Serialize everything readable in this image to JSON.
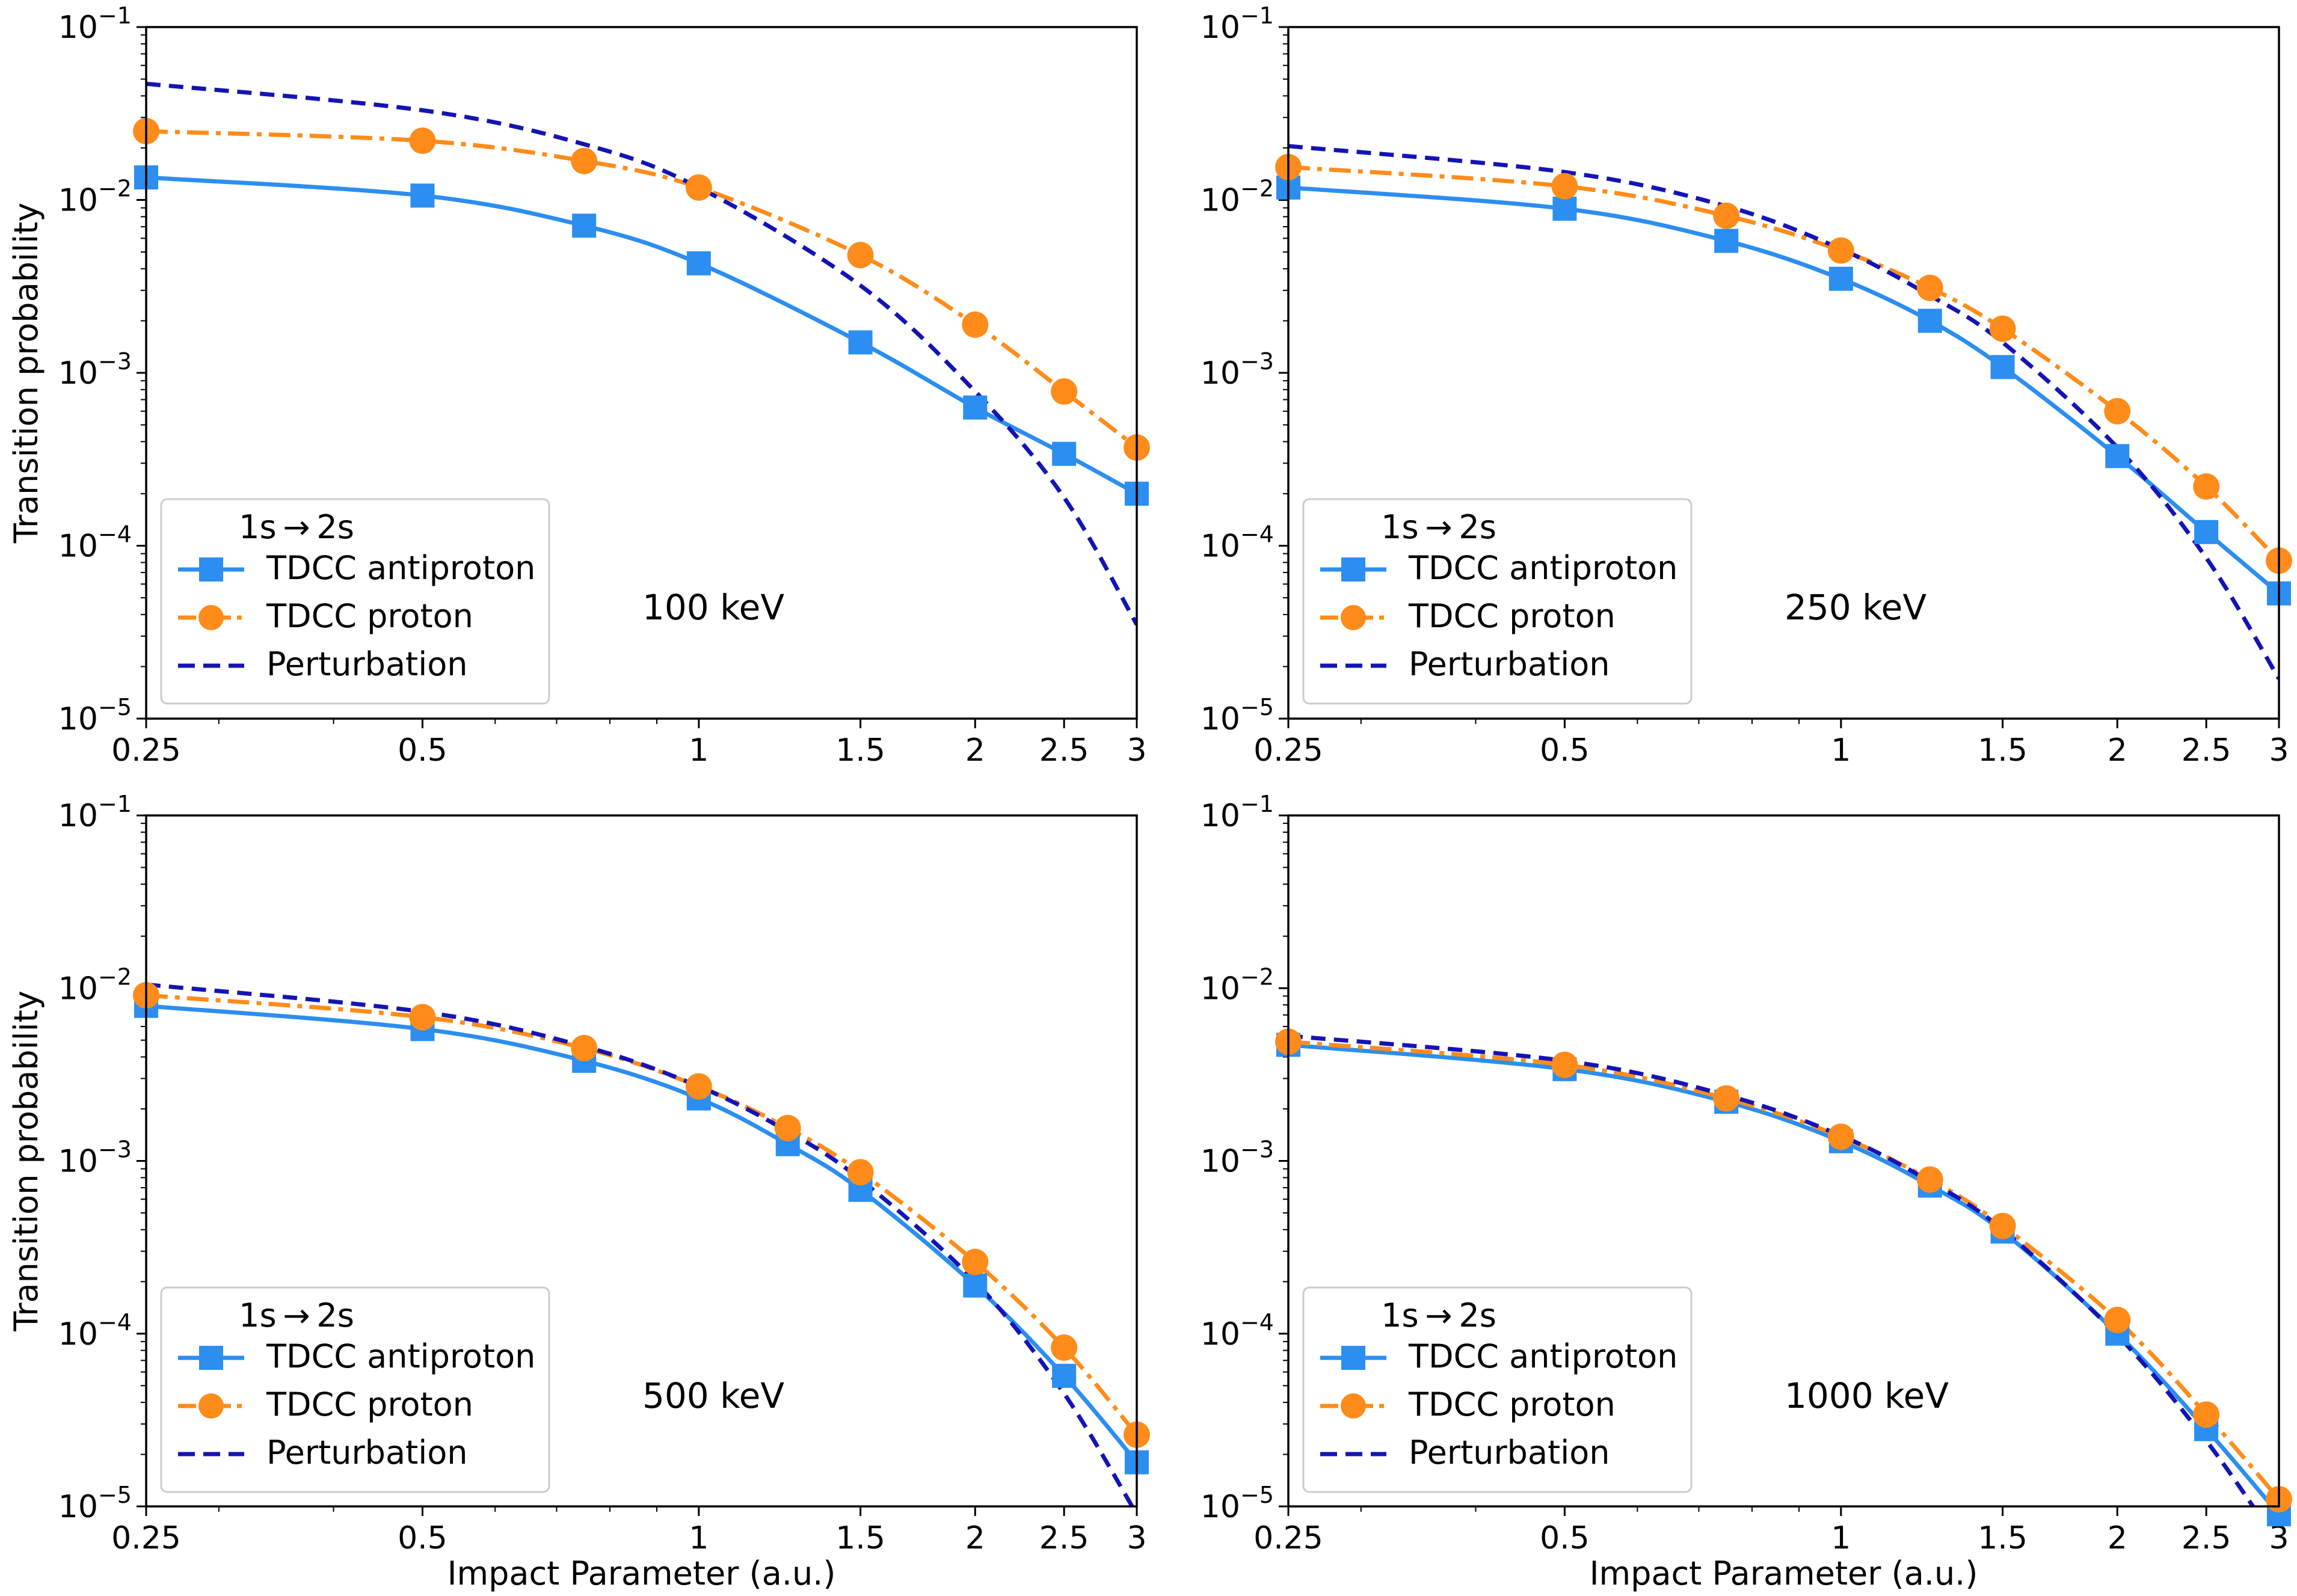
{
  "figure": {
    "ylabel": "Transition probability",
    "xlabel": "Impact Parameter (a.u.)",
    "colors": {
      "antiproton": "#2b8ef0",
      "proton": "#ff8c1a",
      "perturbation": "#1414b4"
    }
  },
  "legend": {
    "title": "1s → 2s",
    "entries": [
      "TDCC antiproton",
      "TDCC proton",
      "Perturbation"
    ]
  },
  "chart_data": [
    {
      "type": "line",
      "energy_label": "100 keV",
      "xscale": "log",
      "yscale": "log",
      "xlim": [
        0.25,
        3
      ],
      "ylim": [
        1e-05,
        0.1
      ],
      "xticks": [
        0.25,
        0.5,
        1,
        1.5,
        2,
        2.5,
        3
      ],
      "xtick_labels": [
        "0.25",
        "0.5",
        "1",
        "1.5",
        "2",
        "2.5",
        "3"
      ],
      "show_xlabel": false,
      "show_ylabel": true,
      "series": [
        {
          "name": "TDCC antiproton",
          "marker": "square",
          "x": [
            0.25,
            0.5,
            0.75,
            1,
            1.5,
            2,
            2.5,
            3
          ],
          "y": [
            0.0135,
            0.0106,
            0.0071,
            0.0043,
            0.0015,
            0.00063,
            0.00034,
            0.0002
          ]
        },
        {
          "name": "TDCC proton",
          "marker": "circle",
          "x": [
            0.25,
            0.5,
            0.75,
            1,
            1.5,
            2,
            2.5,
            3
          ],
          "y": [
            0.025,
            0.022,
            0.0168,
            0.0118,
            0.0048,
            0.0019,
            0.00078,
            0.00037
          ]
        },
        {
          "name": "Perturbation",
          "marker": "none",
          "x": [
            0.25,
            0.5,
            0.75,
            1,
            1.5,
            2,
            2.5,
            3
          ],
          "y": [
            0.047,
            0.033,
            0.021,
            0.0118,
            0.0032,
            0.00078,
            0.00019,
            3.5e-05
          ]
        }
      ]
    },
    {
      "type": "line",
      "energy_label": "250 keV",
      "xscale": "log",
      "yscale": "log",
      "xlim": [
        0.25,
        3
      ],
      "ylim": [
        1e-05,
        0.1
      ],
      "xticks": [
        0.25,
        0.5,
        1,
        1.5,
        2,
        2.5,
        3
      ],
      "xtick_labels": [
        "0.25",
        "0.5",
        "1",
        "1.5",
        "2",
        "2.5",
        "3"
      ],
      "show_xlabel": false,
      "show_ylabel": false,
      "series": [
        {
          "name": "TDCC antiproton",
          "marker": "square",
          "x": [
            0.25,
            0.5,
            0.75,
            1,
            1.25,
            1.5,
            2,
            2.5,
            3
          ],
          "y": [
            0.0118,
            0.0089,
            0.0058,
            0.0035,
            0.002,
            0.00108,
            0.00033,
            0.00012,
            5.3e-05
          ]
        },
        {
          "name": "TDCC proton",
          "marker": "circle",
          "x": [
            0.25,
            0.5,
            0.75,
            1,
            1.25,
            1.5,
            2,
            2.5,
            3
          ],
          "y": [
            0.0155,
            0.012,
            0.0081,
            0.0051,
            0.0031,
            0.0018,
            0.0006,
            0.00022,
            8.2e-05
          ]
        },
        {
          "name": "Perturbation",
          "marker": "none",
          "x": [
            0.25,
            0.5,
            0.75,
            1,
            1.25,
            1.5,
            2,
            2.5,
            3
          ],
          "y": [
            0.0205,
            0.0145,
            0.0092,
            0.0052,
            0.0028,
            0.0015,
            0.00037,
            8.5e-05,
            1.7e-05
          ]
        }
      ]
    },
    {
      "type": "line",
      "energy_label": "500 keV",
      "xscale": "log",
      "yscale": "log",
      "xlim": [
        0.25,
        3
      ],
      "ylim": [
        1e-05,
        0.1
      ],
      "xticks": [
        0.25,
        0.5,
        1,
        1.5,
        2,
        2.5,
        3
      ],
      "xtick_labels": [
        "0.25",
        "0.5",
        "1",
        "1.5",
        "2",
        "2.5",
        "3"
      ],
      "show_xlabel": true,
      "show_ylabel": true,
      "series": [
        {
          "name": "TDCC antiproton",
          "marker": "square",
          "x": [
            0.25,
            0.5,
            0.75,
            1,
            1.25,
            1.5,
            2,
            2.5,
            3
          ],
          "y": [
            0.0079,
            0.0058,
            0.0038,
            0.0023,
            0.00125,
            0.00068,
            0.00019,
            5.7e-05,
            1.8e-05
          ]
        },
        {
          "name": "TDCC proton",
          "marker": "circle",
          "x": [
            0.25,
            0.5,
            0.75,
            1,
            1.25,
            1.5,
            2,
            2.5,
            3
          ],
          "y": [
            0.0091,
            0.0068,
            0.0045,
            0.0027,
            0.00155,
            0.00086,
            0.00026,
            8.3e-05,
            2.6e-05
          ]
        },
        {
          "name": "Perturbation",
          "marker": "none",
          "x": [
            0.25,
            0.5,
            0.75,
            1,
            1.25,
            1.5,
            2,
            2.5,
            3
          ],
          "y": [
            0.0105,
            0.0073,
            0.0046,
            0.0027,
            0.00148,
            0.00078,
            0.0002,
            4.5e-05,
            9e-06
          ]
        }
      ]
    },
    {
      "type": "line",
      "energy_label": "1000 keV",
      "xscale": "log",
      "yscale": "log",
      "xlim": [
        0.25,
        3
      ],
      "ylim": [
        1e-05,
        0.1
      ],
      "xticks": [
        0.25,
        0.5,
        1,
        1.5,
        2,
        2.5,
        3
      ],
      "xtick_labels": [
        "0.25",
        "0.5",
        "1",
        "1.5",
        "2",
        "2.5",
        "3"
      ],
      "show_xlabel": true,
      "show_ylabel": false,
      "series": [
        {
          "name": "TDCC antiproton",
          "marker": "square",
          "x": [
            0.25,
            0.5,
            0.75,
            1,
            1.25,
            1.5,
            2,
            2.5,
            3
          ],
          "y": [
            0.0047,
            0.0034,
            0.0022,
            0.0013,
            0.00072,
            0.00039,
            0.0001,
            2.8e-05,
            9e-06
          ]
        },
        {
          "name": "TDCC proton",
          "marker": "circle",
          "x": [
            0.25,
            0.5,
            0.75,
            1,
            1.25,
            1.5,
            2,
            2.5,
            3
          ],
          "y": [
            0.0049,
            0.0036,
            0.0023,
            0.00138,
            0.00078,
            0.00042,
            0.00012,
            3.4e-05,
            1.1e-05
          ]
        },
        {
          "name": "Perturbation",
          "marker": "none",
          "x": [
            0.25,
            0.5,
            0.75,
            1,
            1.25,
            1.5,
            2,
            2.5,
            3
          ],
          "y": [
            0.0053,
            0.0038,
            0.0024,
            0.0014,
            0.00076,
            0.0004,
            9.8e-05,
            2.4e-05,
            6e-06
          ]
        }
      ]
    }
  ]
}
